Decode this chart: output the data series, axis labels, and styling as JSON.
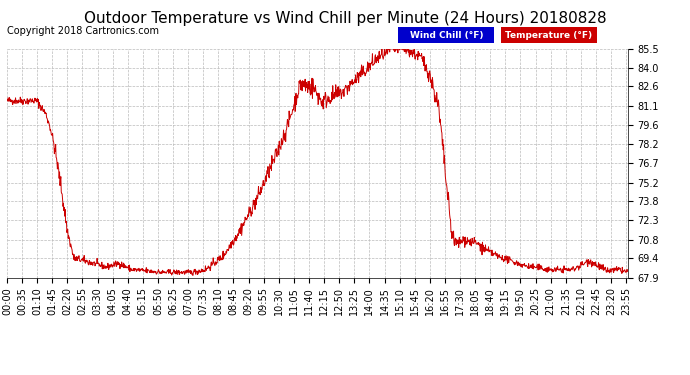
{
  "title": "Outdoor Temperature vs Wind Chill per Minute (24 Hours) 20180828",
  "copyright": "Copyright 2018 Cartronics.com",
  "ylabel_right_ticks": [
    85.5,
    84.0,
    82.6,
    81.1,
    79.6,
    78.2,
    76.7,
    75.2,
    73.8,
    72.3,
    70.8,
    69.4,
    67.9
  ],
  "ylim": [
    67.9,
    85.5
  ],
  "bg_color": "#ffffff",
  "plot_bg_color": "#ffffff",
  "grid_color": "#bbbbbb",
  "line_color": "#cc0000",
  "legend_wind_chill_bg": "#0000cc",
  "legend_temp_bg": "#cc0000",
  "legend_wind_chill_text": "Wind Chill (°F)",
  "legend_temp_text": "Temperature (°F)",
  "title_fontsize": 11,
  "copyright_fontsize": 7,
  "tick_fontsize": 7,
  "num_minutes": 1440,
  "x_tick_interval": 35,
  "x_tick_labels": [
    "00:00",
    "00:35",
    "01:10",
    "01:45",
    "02:20",
    "02:55",
    "03:30",
    "04:05",
    "04:40",
    "05:15",
    "05:50",
    "06:25",
    "07:00",
    "07:35",
    "08:10",
    "08:45",
    "09:20",
    "09:55",
    "10:30",
    "11:05",
    "11:40",
    "12:15",
    "12:50",
    "13:25",
    "14:00",
    "14:35",
    "15:10",
    "15:45",
    "16:20",
    "16:55",
    "17:30",
    "18:05",
    "18:40",
    "19:15",
    "19:50",
    "20:25",
    "21:00",
    "21:35",
    "22:10",
    "22:45",
    "23:20",
    "23:55"
  ],
  "segments": [
    {
      "t0": 0,
      "t1": 70,
      "v0": 81.5,
      "v1": 81.5,
      "noise": 0.15
    },
    {
      "t0": 70,
      "t1": 80,
      "v0": 81.5,
      "v1": 81.0,
      "noise": 0.15
    },
    {
      "t0": 80,
      "t1": 90,
      "v0": 81.0,
      "v1": 80.5,
      "noise": 0.15
    },
    {
      "t0": 90,
      "t1": 100,
      "v0": 80.5,
      "v1": 79.5,
      "noise": 0.15
    },
    {
      "t0": 100,
      "t1": 110,
      "v0": 79.5,
      "v1": 78.0,
      "noise": 0.2
    },
    {
      "t0": 110,
      "t1": 125,
      "v0": 78.0,
      "v1": 75.0,
      "noise": 0.3
    },
    {
      "t0": 125,
      "t1": 140,
      "v0": 75.0,
      "v1": 71.5,
      "noise": 0.3
    },
    {
      "t0": 140,
      "t1": 155,
      "v0": 71.5,
      "v1": 69.4,
      "noise": 0.2
    },
    {
      "t0": 155,
      "t1": 200,
      "v0": 69.4,
      "v1": 69.0,
      "noise": 0.15
    },
    {
      "t0": 200,
      "t1": 230,
      "v0": 69.0,
      "v1": 68.7,
      "noise": 0.12
    },
    {
      "t0": 230,
      "t1": 260,
      "v0": 68.7,
      "v1": 69.0,
      "noise": 0.12
    },
    {
      "t0": 260,
      "t1": 290,
      "v0": 69.0,
      "v1": 68.5,
      "noise": 0.12
    },
    {
      "t0": 290,
      "t1": 360,
      "v0": 68.5,
      "v1": 68.3,
      "noise": 0.12
    },
    {
      "t0": 360,
      "t1": 430,
      "v0": 68.3,
      "v1": 68.3,
      "noise": 0.1
    },
    {
      "t0": 430,
      "t1": 460,
      "v0": 68.3,
      "v1": 68.5,
      "noise": 0.12
    },
    {
      "t0": 460,
      "t1": 500,
      "v0": 68.5,
      "v1": 69.5,
      "noise": 0.15
    },
    {
      "t0": 500,
      "t1": 540,
      "v0": 69.5,
      "v1": 71.5,
      "noise": 0.2
    },
    {
      "t0": 540,
      "t1": 580,
      "v0": 71.5,
      "v1": 74.0,
      "noise": 0.25
    },
    {
      "t0": 580,
      "t1": 620,
      "v0": 74.0,
      "v1": 77.0,
      "noise": 0.3
    },
    {
      "t0": 620,
      "t1": 650,
      "v0": 77.0,
      "v1": 79.5,
      "noise": 0.3
    },
    {
      "t0": 650,
      "t1": 680,
      "v0": 79.5,
      "v1": 82.8,
      "noise": 0.3
    },
    {
      "t0": 680,
      "t1": 710,
      "v0": 82.8,
      "v1": 82.5,
      "noise": 0.4
    },
    {
      "t0": 710,
      "t1": 730,
      "v0": 82.5,
      "v1": 81.4,
      "noise": 0.4
    },
    {
      "t0": 730,
      "t1": 750,
      "v0": 81.4,
      "v1": 81.8,
      "noise": 0.35
    },
    {
      "t0": 750,
      "t1": 780,
      "v0": 81.8,
      "v1": 82.2,
      "noise": 0.3
    },
    {
      "t0": 780,
      "t1": 820,
      "v0": 82.2,
      "v1": 83.5,
      "noise": 0.3
    },
    {
      "t0": 820,
      "t1": 860,
      "v0": 83.5,
      "v1": 84.8,
      "noise": 0.3
    },
    {
      "t0": 860,
      "t1": 890,
      "v0": 84.8,
      "v1": 85.4,
      "noise": 0.25
    },
    {
      "t0": 890,
      "t1": 920,
      "v0": 85.4,
      "v1": 85.5,
      "noise": 0.2
    },
    {
      "t0": 920,
      "t1": 940,
      "v0": 85.5,
      "v1": 85.2,
      "noise": 0.2
    },
    {
      "t0": 940,
      "t1": 960,
      "v0": 85.2,
      "v1": 84.8,
      "noise": 0.25
    },
    {
      "t0": 960,
      "t1": 980,
      "v0": 84.8,
      "v1": 83.5,
      "noise": 0.3
    },
    {
      "t0": 980,
      "t1": 1000,
      "v0": 83.5,
      "v1": 81.0,
      "noise": 0.35
    },
    {
      "t0": 1000,
      "t1": 1010,
      "v0": 81.0,
      "v1": 78.0,
      "noise": 0.4
    },
    {
      "t0": 1010,
      "t1": 1020,
      "v0": 78.0,
      "v1": 74.5,
      "noise": 0.4
    },
    {
      "t0": 1020,
      "t1": 1030,
      "v0": 74.5,
      "v1": 71.5,
      "noise": 0.4
    },
    {
      "t0": 1030,
      "t1": 1040,
      "v0": 71.5,
      "v1": 70.5,
      "noise": 0.3
    },
    {
      "t0": 1040,
      "t1": 1060,
      "v0": 70.5,
      "v1": 70.8,
      "noise": 0.25
    },
    {
      "t0": 1060,
      "t1": 1090,
      "v0": 70.8,
      "v1": 70.5,
      "noise": 0.2
    },
    {
      "t0": 1090,
      "t1": 1110,
      "v0": 70.5,
      "v1": 70.0,
      "noise": 0.2
    },
    {
      "t0": 1110,
      "t1": 1140,
      "v0": 70.0,
      "v1": 69.5,
      "noise": 0.15
    },
    {
      "t0": 1140,
      "t1": 1200,
      "v0": 69.5,
      "v1": 68.8,
      "noise": 0.12
    },
    {
      "t0": 1200,
      "t1": 1260,
      "v0": 68.8,
      "v1": 68.5,
      "noise": 0.12
    },
    {
      "t0": 1260,
      "t1": 1310,
      "v0": 68.5,
      "v1": 68.5,
      "noise": 0.12
    },
    {
      "t0": 1310,
      "t1": 1350,
      "v0": 68.5,
      "v1": 69.2,
      "noise": 0.15
    },
    {
      "t0": 1350,
      "t1": 1390,
      "v0": 69.2,
      "v1": 68.4,
      "noise": 0.15
    },
    {
      "t0": 1390,
      "t1": 1420,
      "v0": 68.4,
      "v1": 68.5,
      "noise": 0.12
    },
    {
      "t0": 1420,
      "t1": 1440,
      "v0": 68.5,
      "v1": 68.3,
      "noise": 0.12
    }
  ]
}
